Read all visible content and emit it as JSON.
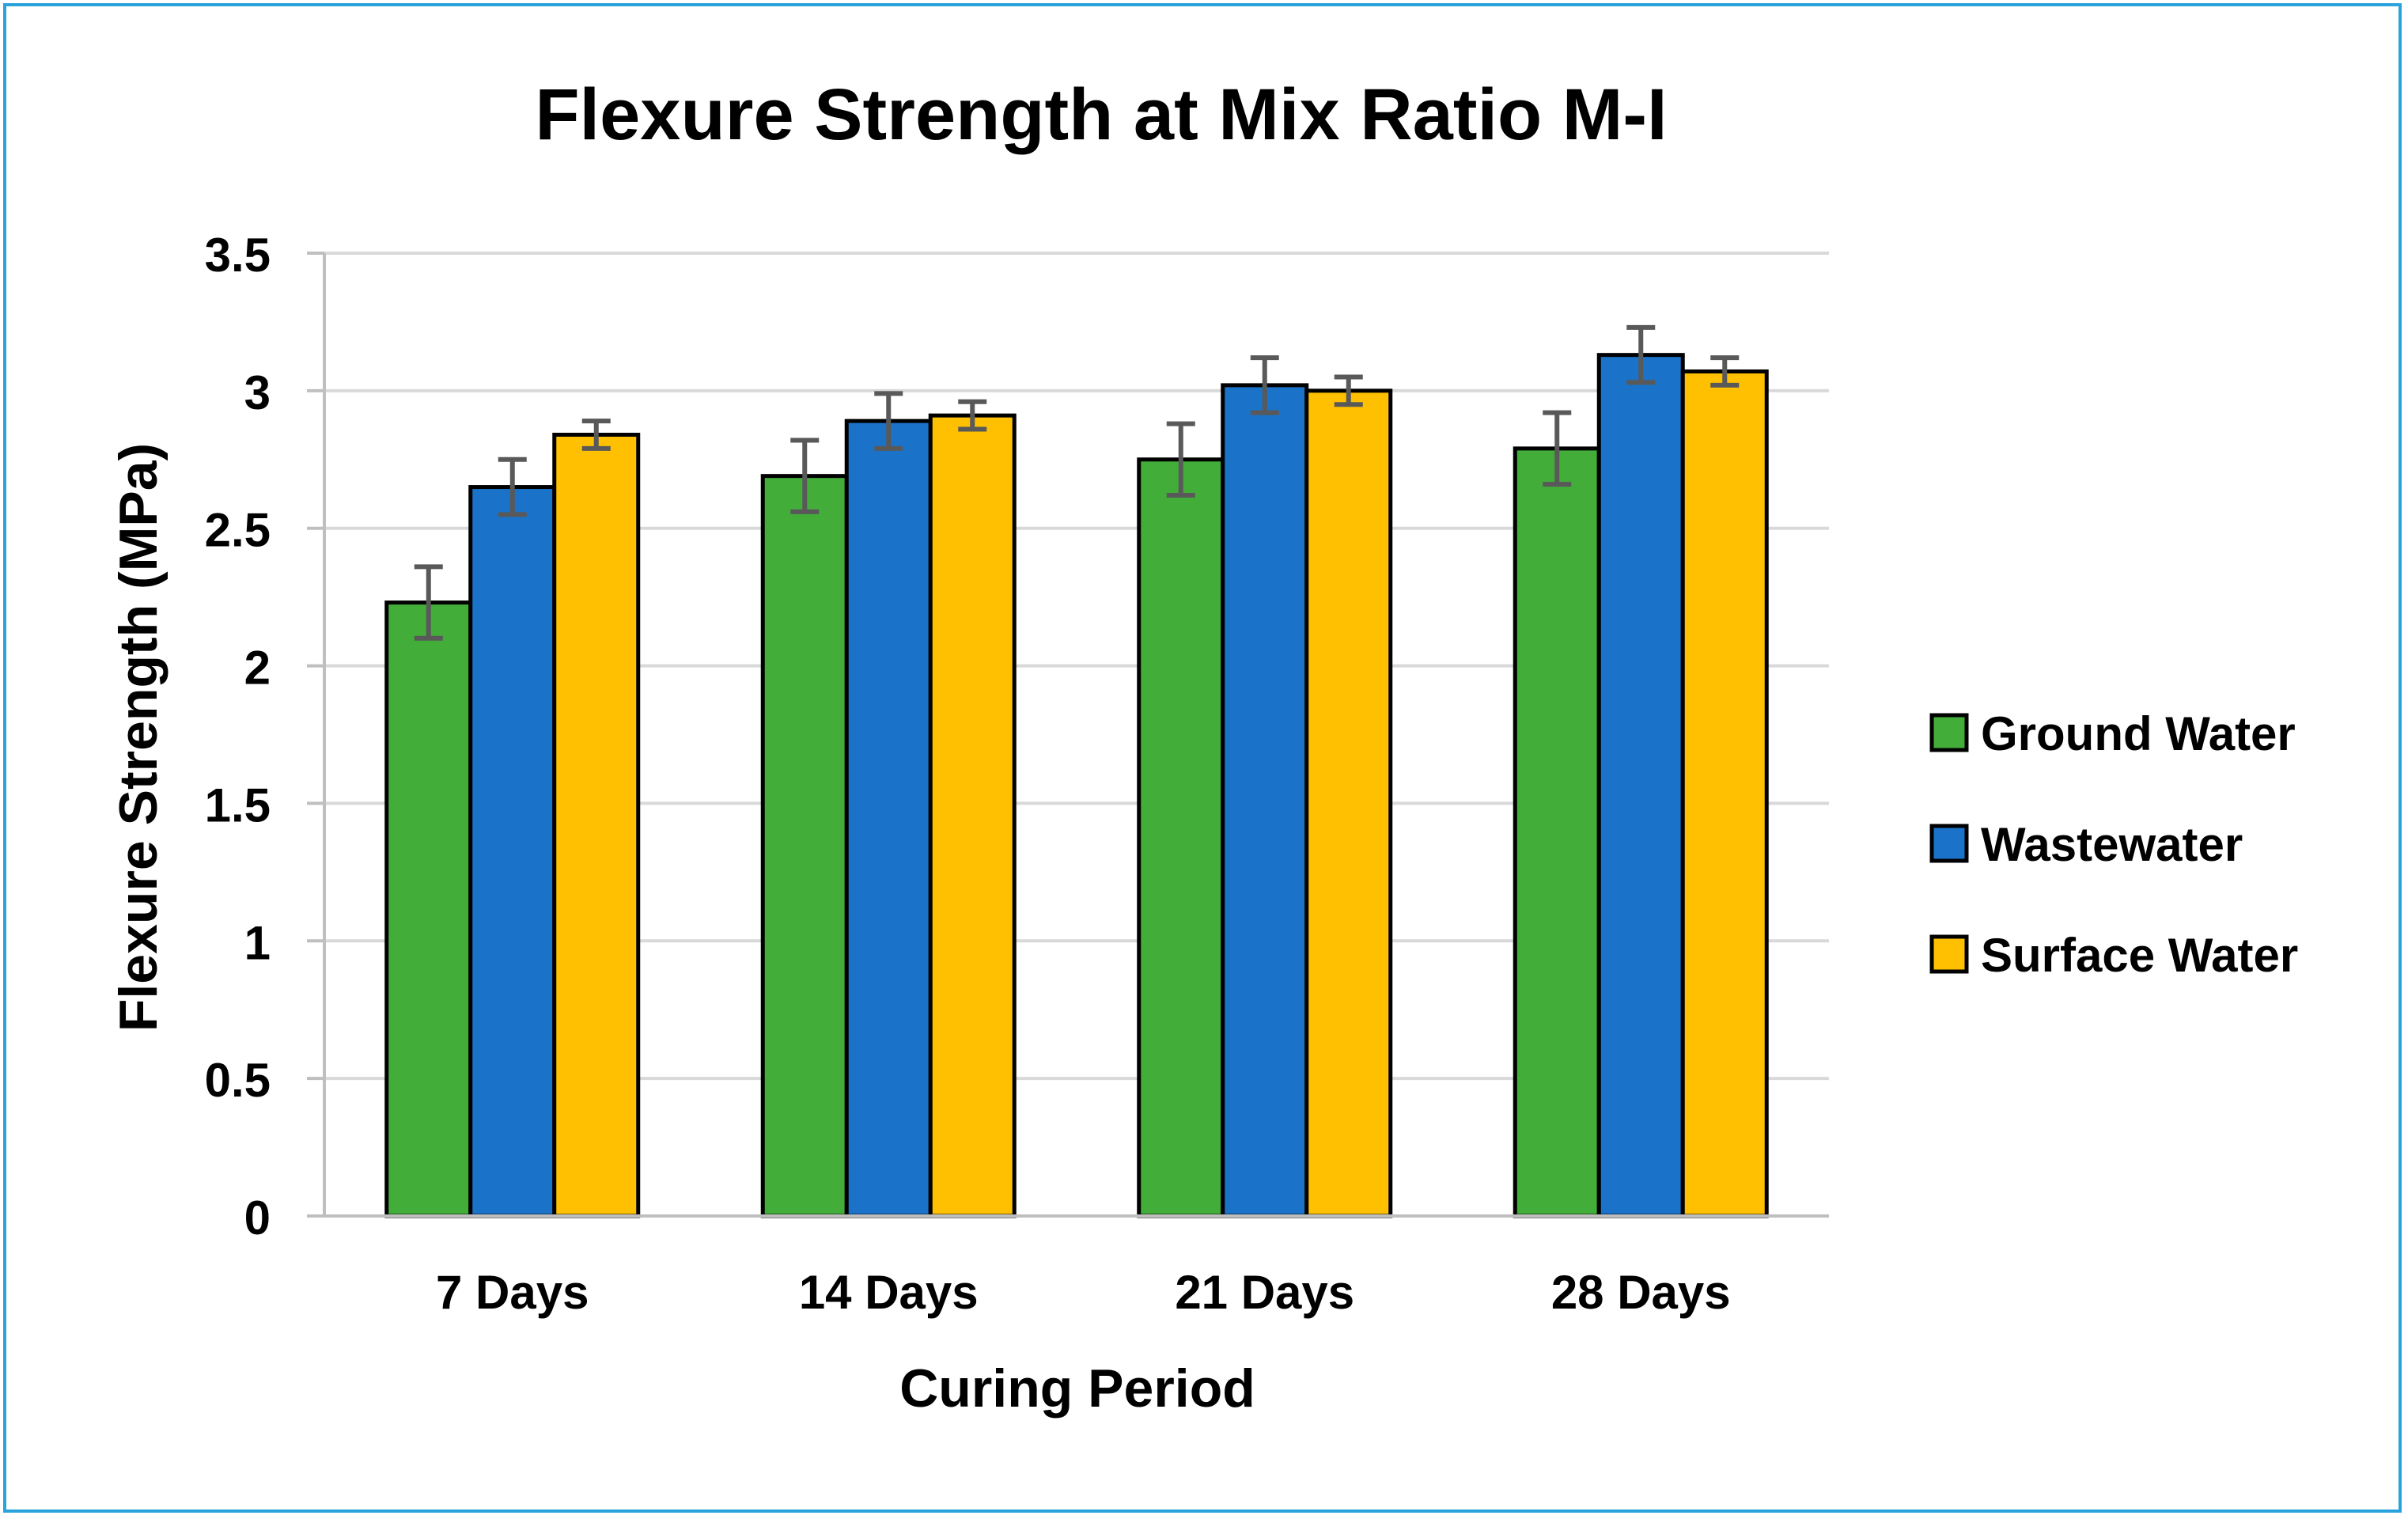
{
  "chart_data": {
    "type": "bar",
    "title": "Flexure Strength at Mix Ratio M-I",
    "xlabel": "Curing Period",
    "ylabel": "Flexure Strength (MPa)",
    "ylim": [
      0,
      3.5
    ],
    "yticks": [
      "0",
      "0.5",
      "1",
      "1.5",
      "2",
      "2.5",
      "3",
      "3.5"
    ],
    "grid": true,
    "legend_position": "right",
    "categories": [
      "7 Days",
      "14 Days",
      "21 Days",
      "28 Days"
    ],
    "series": [
      {
        "name": "Ground Water",
        "color": "#43ad3a",
        "values": [
          2.23,
          2.69,
          2.75,
          2.79
        ],
        "errors": [
          0.13,
          0.13,
          0.13,
          0.13
        ]
      },
      {
        "name": "Wastewater",
        "color": "#1a73c9",
        "values": [
          2.65,
          2.89,
          3.02,
          3.13
        ],
        "errors": [
          0.1,
          0.1,
          0.1,
          0.1
        ]
      },
      {
        "name": "Surface Water",
        "color": "#fec000",
        "values": [
          2.84,
          2.91,
          3.0,
          3.07
        ],
        "errors": [
          0.05,
          0.05,
          0.05,
          0.05
        ]
      }
    ]
  }
}
